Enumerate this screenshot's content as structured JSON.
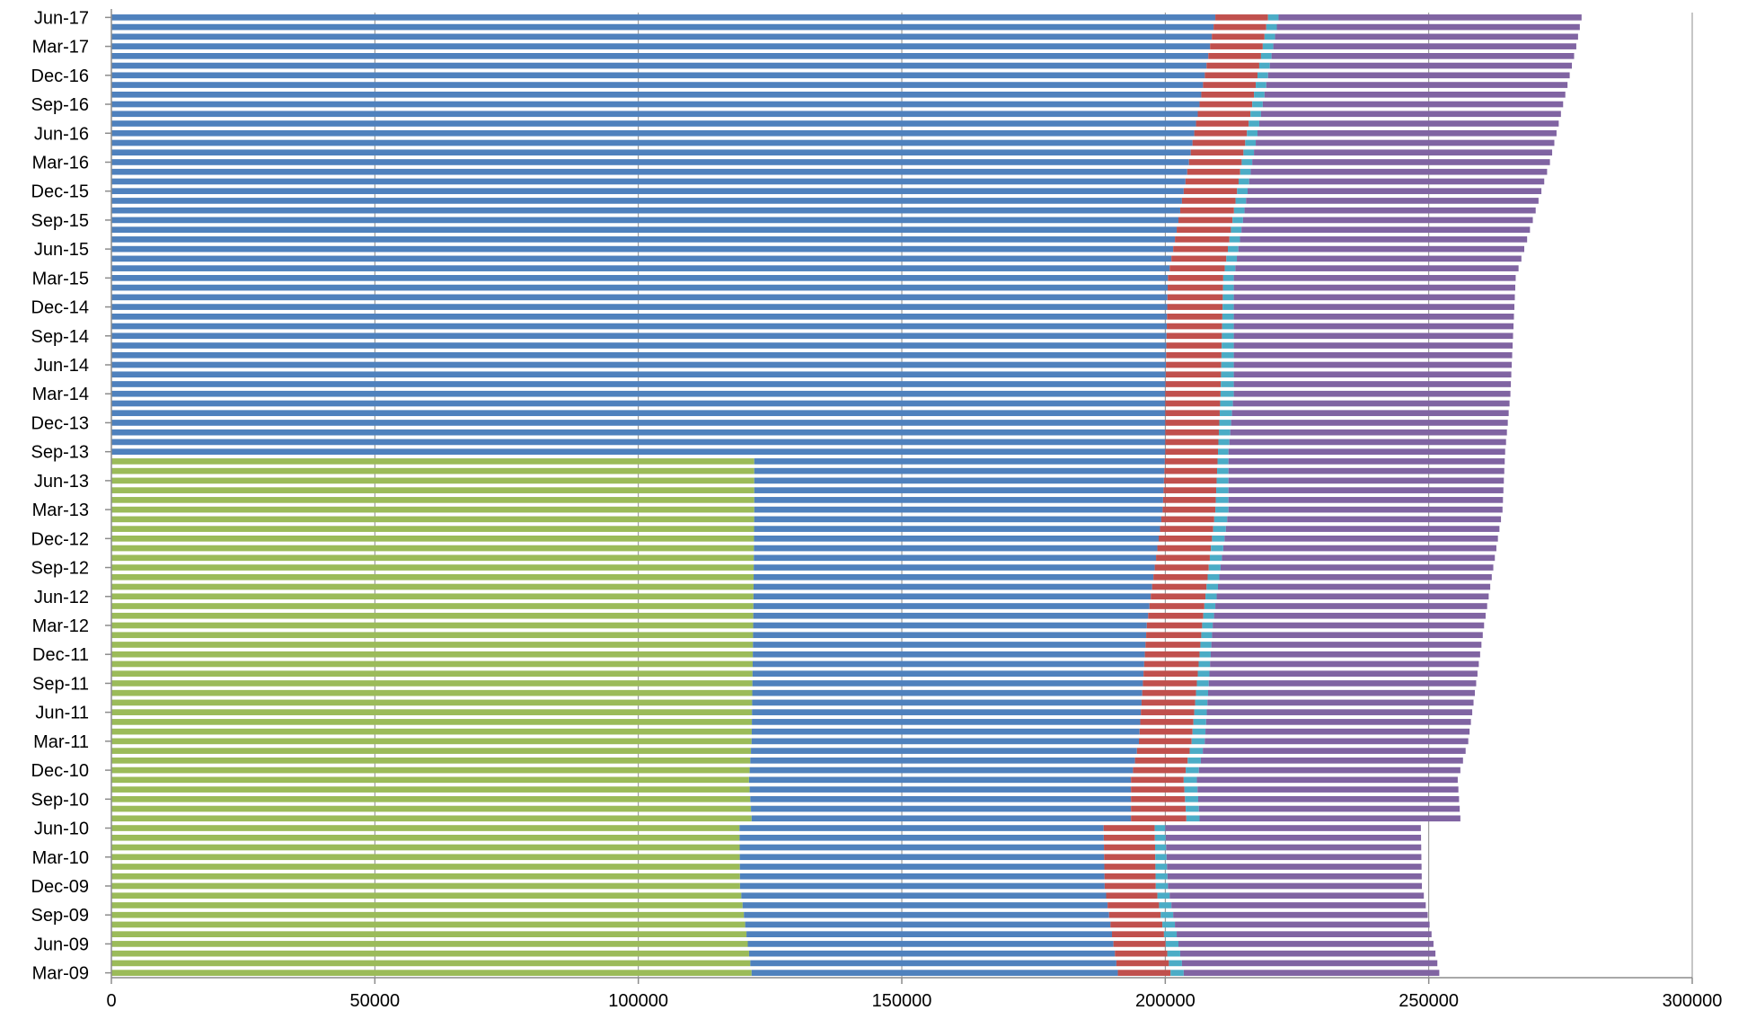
{
  "chart_data": {
    "type": "bar",
    "orientation": "horizontal",
    "stacked": true,
    "xlim": [
      0,
      300000
    ],
    "x_ticks": [
      0,
      50000,
      100000,
      150000,
      200000,
      250000,
      300000
    ],
    "x_tick_labels": [
      "0",
      "50000",
      "100000",
      "150000",
      "200000",
      "250000",
      "300000"
    ],
    "y_tick_labels_shown": [
      "Mar-09",
      "Jun-09",
      "Sep-09",
      "Dec-09",
      "Mar-10",
      "Jun-10",
      "Sep-10",
      "Dec-10",
      "Mar-11",
      "Jun-11",
      "Sep-11",
      "Dec-11",
      "Mar-12",
      "Jun-12",
      "Sep-12",
      "Dec-12",
      "Mar-13",
      "Jun-13",
      "Sep-13",
      "Dec-13",
      "Mar-14",
      "Jun-14",
      "Sep-14",
      "Dec-14",
      "Mar-15",
      "Jun-15",
      "Sep-15",
      "Dec-15",
      "Mar-16",
      "Jun-16",
      "Sep-16",
      "Dec-16",
      "Mar-17",
      "Jun-17"
    ],
    "vertical_grid": true,
    "legend": "none",
    "series_colors": [
      "#9bbb59",
      "#4f81bd",
      "#c0504d",
      "#4bacc6",
      "#8064a2"
    ],
    "cumulative_anchors": [
      {
        "month": 0,
        "green": 121500,
        "blue": 191000,
        "red": 201000,
        "cyan": 203500,
        "total": 252000
      },
      {
        "month": 9,
        "green": 119300,
        "blue": 188500,
        "red": 198200,
        "cyan": 200500,
        "total": 248700
      },
      {
        "month": 15,
        "green": 119200,
        "blue": 188300,
        "red": 198000,
        "cyan": 200000,
        "total": 248500
      },
      {
        "month": 16,
        "green": 121500,
        "blue": 193500,
        "red": 204000,
        "cyan": 206500,
        "total": 256000
      },
      {
        "month": 20,
        "green": 121000,
        "blue": 193500,
        "red": 203500,
        "cyan": 206000,
        "total": 255500
      },
      {
        "month": 24,
        "green": 121500,
        "blue": 195000,
        "red": 205000,
        "cyan": 207500,
        "total": 257500
      },
      {
        "month": 36,
        "green": 121800,
        "blue": 196500,
        "red": 207000,
        "cyan": 209000,
        "total": 260500
      },
      {
        "month": 48,
        "green": 122000,
        "blue": 199500,
        "red": 209500,
        "cyan": 212000,
        "total": 264000
      },
      {
        "month": 54,
        "green": 0,
        "blue": 200000,
        "red": 210000,
        "cyan": 212000,
        "total": 264500
      },
      {
        "month": 60,
        "green": 0,
        "blue": 200000,
        "red": 210500,
        "cyan": 213000,
        "total": 265500
      },
      {
        "month": 72,
        "green": 0,
        "blue": 200500,
        "red": 211000,
        "cyan": 213000,
        "total": 266500
      },
      {
        "month": 84,
        "green": 0,
        "blue": 204500,
        "red": 214500,
        "cyan": 216500,
        "total": 273000
      },
      {
        "month": 96,
        "green": 0,
        "blue": 208500,
        "red": 218500,
        "cyan": 220500,
        "total": 278000
      },
      {
        "month": 99,
        "green": 0,
        "blue": 209500,
        "red": 219500,
        "cyan": 221500,
        "total": 279000
      }
    ]
  }
}
